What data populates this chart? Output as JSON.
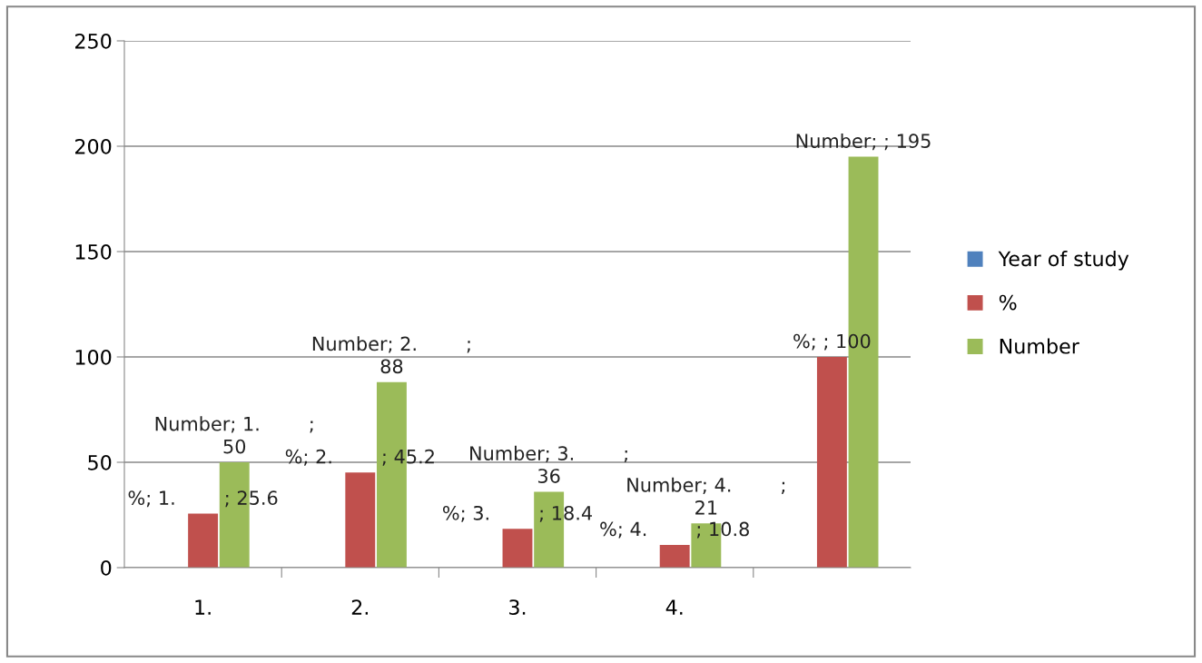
{
  "chart_data": {
    "type": "bar",
    "categories": [
      "1.",
      "2.",
      "3.",
      "4.",
      null
    ],
    "series": [
      {
        "name": "Year of study",
        "color": "#4f81bd",
        "values": [
          null,
          null,
          null,
          null,
          null
        ]
      },
      {
        "name": "%",
        "color": "#c0504d",
        "values": [
          25.6,
          45.2,
          18.4,
          10.8,
          100
        ],
        "value_labels": [
          "%; 1.        ; 25.6",
          "%; 2.        ; 45.2",
          "%; 3.        ; 18.4",
          "%; 4.        ; 10.8",
          "%; ; 100"
        ]
      },
      {
        "name": "Number",
        "color": "#9bbb59",
        "values": [
          50,
          88,
          36,
          21,
          195
        ],
        "value_labels": [
          "Number; 1.        ;\n50",
          "Number; 2.        ;\n88",
          "Number; 3.        ;\n36",
          "Number; 4.        ;\n21",
          "Number; ; 195"
        ]
      }
    ],
    "ylim": [
      0,
      250
    ],
    "yticks": [
      0,
      50,
      100,
      150,
      200,
      250
    ],
    "grid": "y",
    "legend": "right"
  }
}
